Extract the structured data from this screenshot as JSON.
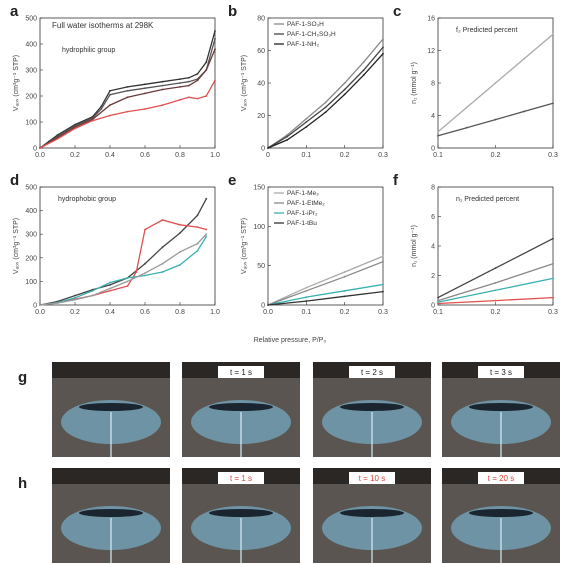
{
  "figure": {
    "x_shared_label": "Relative pressure, P/P₀",
    "panel_letters": [
      "a",
      "b",
      "c",
      "d",
      "e",
      "f",
      "g",
      "h"
    ]
  },
  "chart_data": [
    {
      "id": "a",
      "type": "line",
      "title": "Full water isotherms at 298K",
      "annotation": "hydrophilic group",
      "ylabel": "Vₐₒₛ (cm³g⁻¹ STP)",
      "xlim": [
        0,
        1.0
      ],
      "ylim": [
        0,
        500
      ],
      "xticks": [
        "0.0",
        "0.2",
        "0.4",
        "0.6",
        "0.8",
        "1.0"
      ],
      "yticks": [
        "0",
        "100",
        "200",
        "300",
        "400",
        "500"
      ],
      "series": [
        {
          "color": "#333333",
          "x": [
            0,
            0.05,
            0.1,
            0.2,
            0.3,
            0.35,
            0.4,
            0.5,
            0.6,
            0.7,
            0.8,
            0.85,
            0.9,
            0.95,
            1.0
          ],
          "values": [
            0,
            25,
            50,
            90,
            120,
            160,
            220,
            235,
            245,
            255,
            265,
            270,
            285,
            330,
            450
          ]
        },
        {
          "color": "#555555",
          "x": [
            0,
            0.05,
            0.1,
            0.2,
            0.3,
            0.35,
            0.4,
            0.5,
            0.6,
            0.7,
            0.8,
            0.85,
            0.9,
            0.95,
            1.0
          ],
          "values": [
            0,
            20,
            45,
            85,
            115,
            150,
            205,
            220,
            230,
            240,
            250,
            255,
            265,
            300,
            420
          ]
        },
        {
          "color": "#6b3a3a",
          "x": [
            0,
            0.1,
            0.2,
            0.3,
            0.4,
            0.5,
            0.6,
            0.7,
            0.8,
            0.85,
            0.9,
            0.95,
            1.0
          ],
          "values": [
            0,
            40,
            80,
            110,
            165,
            195,
            210,
            225,
            235,
            240,
            260,
            300,
            380
          ]
        },
        {
          "color": "#e05050",
          "x": [
            0,
            0.1,
            0.2,
            0.3,
            0.4,
            0.5,
            0.6,
            0.7,
            0.8,
            0.85,
            0.9,
            0.95,
            1.0
          ],
          "values": [
            0,
            35,
            75,
            105,
            125,
            140,
            150,
            165,
            185,
            195,
            190,
            200,
            260
          ]
        }
      ]
    },
    {
      "id": "b",
      "type": "line",
      "ylabel": "Vₐₒₛ (cm³g⁻¹ STP)",
      "xlim": [
        0,
        0.3
      ],
      "ylim": [
        0,
        80
      ],
      "xticks": [
        "0",
        "0.1",
        "0.2",
        "0.3"
      ],
      "yticks": [
        "0",
        "20",
        "40",
        "60",
        "80"
      ],
      "legend": [
        "PAF-1-SO₃H",
        "PAF-1-CH₂SO₃H",
        "PAF-1-NH₂"
      ],
      "series": [
        {
          "color": "#888888",
          "x": [
            0,
            0.05,
            0.1,
            0.15,
            0.2,
            0.25,
            0.3
          ],
          "values": [
            0,
            8,
            18,
            28,
            40,
            53,
            67
          ]
        },
        {
          "color": "#444444",
          "x": [
            0,
            0.05,
            0.1,
            0.15,
            0.2,
            0.25,
            0.3
          ],
          "values": [
            0,
            7,
            16,
            25,
            36,
            48,
            62
          ]
        },
        {
          "color": "#222222",
          "x": [
            0,
            0.05,
            0.1,
            0.15,
            0.2,
            0.25,
            0.3
          ],
          "values": [
            0,
            5,
            13,
            22,
            33,
            45,
            58
          ]
        }
      ]
    },
    {
      "id": "c",
      "type": "line",
      "annotation": "f₂ Predicted percent",
      "ylabel": "n₁ (mmol g⁻¹)",
      "xlim": [
        0.1,
        0.3
      ],
      "ylim": [
        0,
        16
      ],
      "xticks": [
        "0.1",
        "0.2",
        "0.3"
      ],
      "yticks": [
        "0",
        "4",
        "8",
        "12",
        "16"
      ],
      "series": [
        {
          "color": "#aaaaaa",
          "x": [
            0.1,
            0.15,
            0.2,
            0.25,
            0.3
          ],
          "values": [
            2,
            5,
            8,
            11,
            14
          ]
        },
        {
          "color": "#555555",
          "x": [
            0.1,
            0.15,
            0.2,
            0.25,
            0.3
          ],
          "values": [
            1.5,
            2.5,
            3.5,
            4.5,
            5.5
          ]
        }
      ]
    },
    {
      "id": "d",
      "type": "line",
      "annotation": "hydrophobic group",
      "ylabel": "Vₐₒₛ (cm³g⁻¹ STP)",
      "xlim": [
        0,
        1.0
      ],
      "ylim": [
        0,
        500
      ],
      "xticks": [
        "0.0",
        "0.2",
        "0.4",
        "0.6",
        "0.8",
        "1.0"
      ],
      "yticks": [
        "0",
        "100",
        "200",
        "300",
        "400",
        "500"
      ],
      "series": [
        {
          "color": "#444444",
          "x": [
            0,
            0.1,
            0.2,
            0.3,
            0.4,
            0.5,
            0.6,
            0.7,
            0.8,
            0.9,
            0.95
          ],
          "values": [
            0,
            15,
            40,
            65,
            85,
            115,
            175,
            245,
            305,
            380,
            450
          ]
        },
        {
          "color": "#e05050",
          "x": [
            0,
            0.1,
            0.2,
            0.3,
            0.4,
            0.5,
            0.55,
            0.6,
            0.7,
            0.8,
            0.9,
            0.95
          ],
          "values": [
            0,
            10,
            25,
            40,
            60,
            80,
            140,
            320,
            360,
            340,
            330,
            320
          ]
        },
        {
          "color": "#3ab0b0",
          "x": [
            0,
            0.1,
            0.2,
            0.3,
            0.4,
            0.5,
            0.6,
            0.7,
            0.8,
            0.9,
            0.95
          ],
          "values": [
            0,
            10,
            30,
            60,
            95,
            115,
            125,
            140,
            170,
            230,
            290
          ]
        },
        {
          "color": "#999999",
          "x": [
            0,
            0.1,
            0.2,
            0.3,
            0.4,
            0.5,
            0.6,
            0.7,
            0.8,
            0.9,
            0.95
          ],
          "values": [
            0,
            8,
            22,
            40,
            70,
            100,
            135,
            175,
            225,
            260,
            300
          ]
        }
      ]
    },
    {
      "id": "e",
      "type": "line",
      "ylabel": "Vₐₒₛ (cm³g⁻¹ STP)",
      "xlim": [
        0,
        0.3
      ],
      "ylim": [
        0,
        150
      ],
      "xticks": [
        "0.0",
        "0.1",
        "0.2",
        "0.3"
      ],
      "yticks": [
        "0",
        "50",
        "100",
        "150"
      ],
      "legend": [
        "PAF-1-Me₃",
        "PAF-1-EtMe₂",
        "PAF-1-iPr₂",
        "PAF-1-tBu"
      ],
      "series": [
        {
          "color": "#aaaaaa",
          "x": [
            0,
            0.1,
            0.2,
            0.3
          ],
          "values": [
            0,
            22,
            42,
            62
          ]
        },
        {
          "color": "#888888",
          "x": [
            0,
            0.1,
            0.2,
            0.3
          ],
          "values": [
            0,
            18,
            36,
            55
          ]
        },
        {
          "color": "#3ab0b0",
          "x": [
            0,
            0.1,
            0.2,
            0.3
          ],
          "values": [
            0,
            10,
            18,
            26
          ]
        },
        {
          "color": "#333333",
          "x": [
            0,
            0.1,
            0.2,
            0.3
          ],
          "values": [
            0,
            5,
            11,
            17
          ]
        }
      ]
    },
    {
      "id": "f",
      "type": "line",
      "annotation": "n₁ Predicted percent",
      "ylabel": "n₁ (mmol g⁻¹)",
      "xlim": [
        0.1,
        0.3
      ],
      "ylim": [
        0,
        8
      ],
      "xticks": [
        "0.1",
        "0.2",
        "0.3"
      ],
      "yticks": [
        "0",
        "2",
        "4",
        "6",
        "8"
      ],
      "series": [
        {
          "color": "#444444",
          "x": [
            0.1,
            0.2,
            0.3
          ],
          "values": [
            0.5,
            2.5,
            4.5
          ]
        },
        {
          "color": "#888888",
          "x": [
            0.1,
            0.2,
            0.3
          ],
          "values": [
            0.3,
            1.5,
            2.8
          ]
        },
        {
          "color": "#3ab0b0",
          "x": [
            0.1,
            0.2,
            0.3
          ],
          "values": [
            0.2,
            1.0,
            1.8
          ]
        },
        {
          "color": "#e05050",
          "x": [
            0.1,
            0.2,
            0.3
          ],
          "values": [
            0.1,
            0.3,
            0.5
          ]
        }
      ]
    }
  ],
  "photos": {
    "row_g": {
      "letter": "g",
      "times": [
        "",
        "t = 1 s",
        "t = 2 s",
        "t = 3 s"
      ]
    },
    "row_h": {
      "letter": "h",
      "times": [
        "",
        "t = 1 s",
        "t = 10 s",
        "t = 20 s"
      ]
    },
    "colors": {
      "bg": "#5a5550",
      "glow": "#7fc6ea",
      "drop": "#1a2530",
      "stamp_bg": "#ffffff"
    }
  }
}
